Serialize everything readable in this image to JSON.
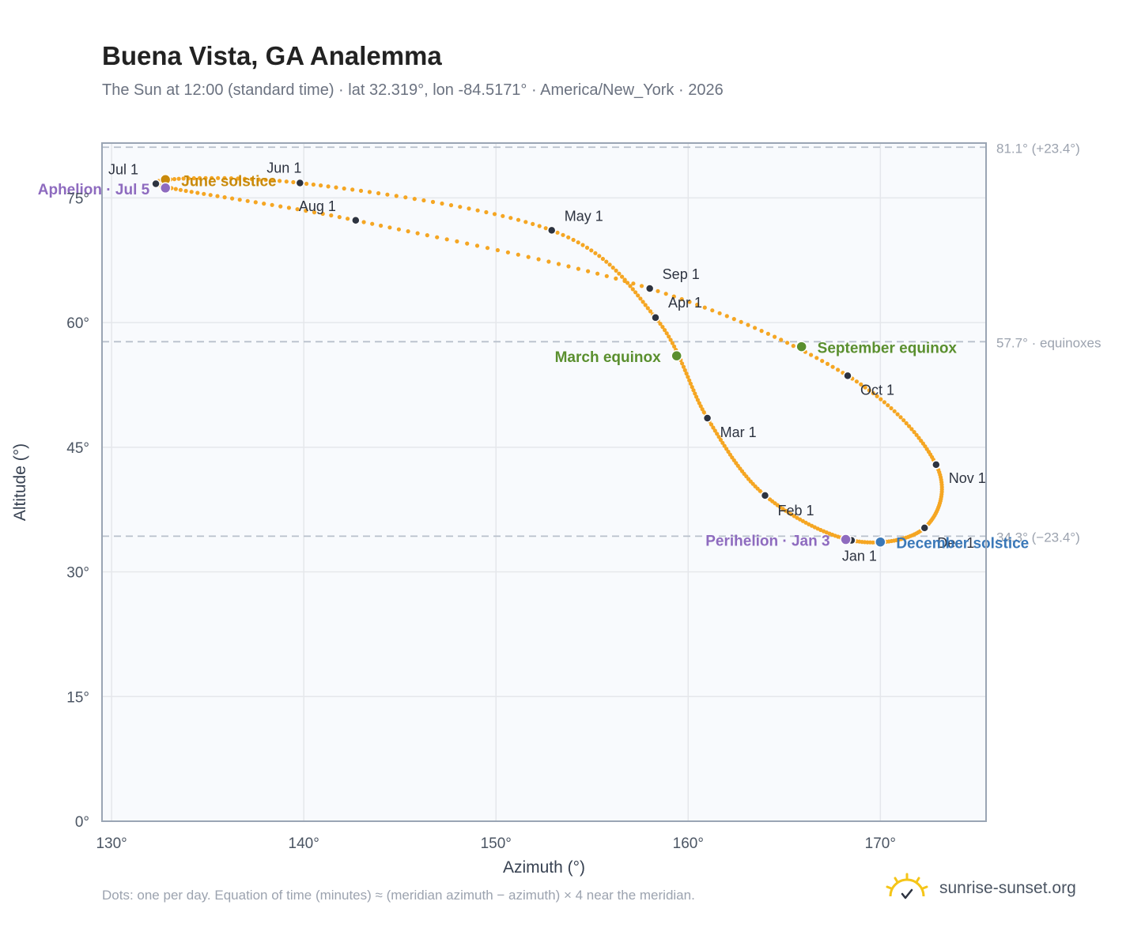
{
  "header": {
    "title": "Buena Vista, GA Analemma",
    "subtitle": "The Sun at 12:00 (standard time) · lat 32.319°, lon -84.5171° · America/New_York · 2026"
  },
  "footer": {
    "note": "Dots: one per day. Equation of time (minutes) ≈ (meridian azimuth − azimuth) × 4 near the meridian.",
    "brand": "sunrise-sunset.org",
    "brand_icon": "sun-logo-icon"
  },
  "colors": {
    "curve": "#f5a623",
    "month_dot": "#2d3340",
    "solstice_june": "#c98a0b",
    "solstice_december": "#3a78b8",
    "equinox": "#5a8f2e",
    "apsis": "#8e6bbf",
    "grid": "#e5e7eb",
    "plot_bg": "#f8fafd",
    "frame": "#9aa5b4",
    "ref_line": "#b8c0cc"
  },
  "chart_data": {
    "type": "scatter",
    "xlabel": "Azimuth (°)",
    "ylabel": "Altitude (°)",
    "xlim": [
      129.5,
      175.5
    ],
    "ylim": [
      0,
      81.6
    ],
    "xticks": [
      130,
      140,
      150,
      160,
      170
    ],
    "yticks": [
      0,
      15,
      30,
      45,
      60,
      75
    ],
    "xtick_labels": [
      "130°",
      "140°",
      "150°",
      "160°",
      "170°"
    ],
    "ytick_labels": [
      "0°",
      "15°",
      "30°",
      "45°",
      "60°",
      "75°"
    ],
    "grid": true,
    "curve_points": [
      {
        "label": "Jan 1",
        "az": 168.5,
        "alt": 33.8
      },
      {
        "label": "Feb 1",
        "az": 164.0,
        "alt": 39.2
      },
      {
        "label": "Mar 1",
        "az": 161.0,
        "alt": 48.5
      },
      {
        "label": "Apr 1",
        "az": 158.3,
        "alt": 60.6
      },
      {
        "label": "May 1",
        "az": 152.9,
        "alt": 71.1
      },
      {
        "label": "Jun 1",
        "az": 139.8,
        "alt": 76.8
      },
      {
        "label": "Jul 1",
        "az": 132.3,
        "alt": 76.7
      },
      {
        "label": "Aug 1",
        "az": 142.7,
        "alt": 72.3
      },
      {
        "label": "Sep 1",
        "az": 158.0,
        "alt": 64.1
      },
      {
        "label": "Oct 1",
        "az": 168.3,
        "alt": 53.6
      },
      {
        "label": "Nov 1",
        "az": 172.9,
        "alt": 42.9
      },
      {
        "label": "Dec 1",
        "az": 172.3,
        "alt": 35.3
      }
    ],
    "events": [
      {
        "label": "June solstice",
        "az": 132.8,
        "alt": 77.2,
        "kind": "solstice_june"
      },
      {
        "label": "Aphelion · Jul 5",
        "az": 132.8,
        "alt": 76.2,
        "kind": "apsis"
      },
      {
        "label": "March equinox",
        "az": 159.4,
        "alt": 56.0,
        "kind": "equinox"
      },
      {
        "label": "September equinox",
        "az": 165.9,
        "alt": 57.1,
        "kind": "equinox"
      },
      {
        "label": "Perihelion · Jan 3",
        "az": 168.2,
        "alt": 33.9,
        "kind": "apsis"
      },
      {
        "label": "December solstice",
        "az": 170.0,
        "alt": 33.6,
        "kind": "solstice_december"
      }
    ],
    "reference_lines": [
      {
        "alt": 81.1,
        "label": "81.1° (+23.4°)"
      },
      {
        "alt": 57.7,
        "label": "57.7° · equinoxes"
      },
      {
        "alt": 34.3,
        "label": "34.3° (−23.4°)"
      }
    ]
  }
}
